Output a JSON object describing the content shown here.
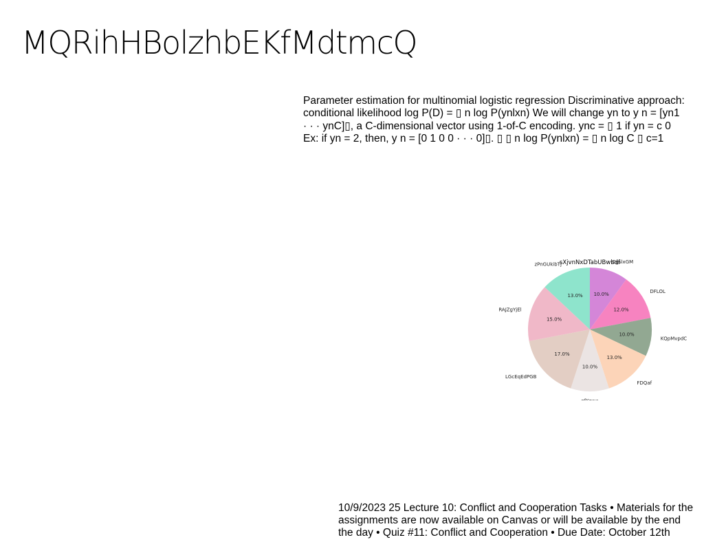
{
  "slide": {
    "title": "MQRihHBolzhbEKfMdtmcQ",
    "body_lines": [
      "Parameter estimation for multinomial logistic regression Discriminative approach:",
      "conditional likelihood log P(D) = ▯ n log P(ynlxn) We will change yn to y n = [yn1",
      "· · · ynC]▯, a C-dimensional vector using 1-of-C encoding. ync = ▯ 1 if yn = c 0",
      "Ex: if yn = 2, then, y n = [0 1 0 0 · · · 0]▯. ▯ ▯ n log P(ynlxn) = ▯ n log C ▯ c=1"
    ],
    "footer_lines": [
      "10/9/2023 25 Lecture 10: Conflict and Cooperation Tasks • Materials for the",
      "assignments are now available on Canvas or will be available by the end",
      "the day • Quiz #11: Conflict and Cooperation • Due Date: October 12th"
    ]
  },
  "chart_data": {
    "type": "pie",
    "title": "sXjvnNxDTabUBwbdf",
    "start_angle_deg": 90,
    "direction": "clockwise",
    "slices": [
      {
        "label": "OgslxGM",
        "value": 10.0,
        "pct_label": "10.0%",
        "color": "#d486d8"
      },
      {
        "label": "DFLOL",
        "value": 12.0,
        "pct_label": "12.0%",
        "color": "#f783c0"
      },
      {
        "label": "KQpMvpdC",
        "value": 10.0,
        "pct_label": "10.0%",
        "color": "#92a892"
      },
      {
        "label": "FDQaf",
        "value": 13.0,
        "pct_label": "13.0%",
        "color": "#fcd4b8"
      },
      {
        "label": "gfYqwa",
        "value": 10.0,
        "pct_label": "10.0%",
        "color": "#ebe4e3"
      },
      {
        "label": "LGcEqEdPGB",
        "value": 17.0,
        "pct_label": "17.0%",
        "color": "#e3cec4"
      },
      {
        "label": "RAJZgYjEl",
        "value": 15.0,
        "pct_label": "15.0%",
        "color": "#f0b8c8"
      },
      {
        "label": "zPnGUkibTj",
        "value": 13.0,
        "pct_label": "13.0%",
        "color": "#8ee4cc"
      }
    ]
  }
}
